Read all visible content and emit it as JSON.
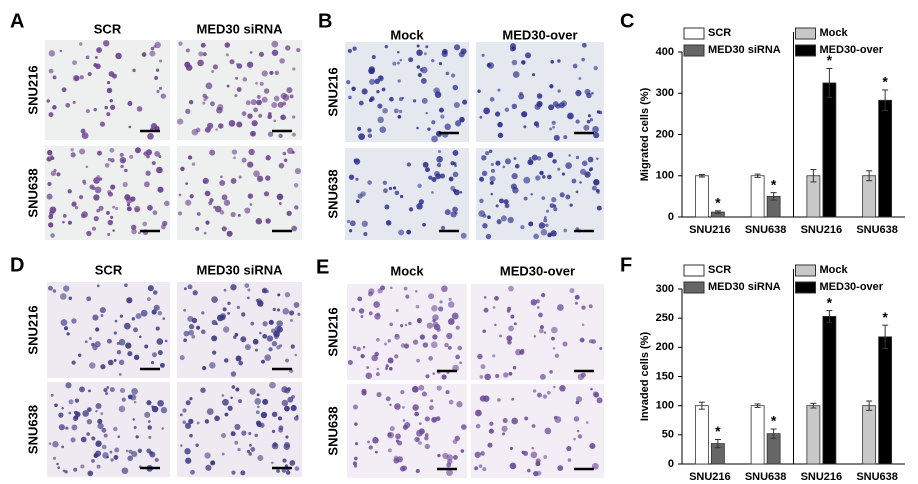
{
  "panels": [
    {
      "label": "A",
      "columns": [
        "SCR",
        "MED30 siRNA"
      ],
      "rows": [
        "SNU216",
        "SNU638"
      ]
    },
    {
      "label": "B",
      "columns": [
        "Mock",
        "MED30-over"
      ],
      "rows": [
        "SNU216",
        "SNU638"
      ]
    },
    {
      "label": "D",
      "columns": [
        "SCR",
        "MED30 siRNA"
      ],
      "rows": [
        "SNU216",
        "SNU638"
      ]
    },
    {
      "label": "E",
      "columns": [
        "Mock",
        "MED30-over"
      ],
      "rows": [
        "SNU216",
        "SNU638"
      ]
    }
  ],
  "chart_data": [
    {
      "type": "bar",
      "panel": "C",
      "y_label": "Migrated cells (%)",
      "categories": [
        "SNU216",
        "SNU638",
        "SNU216",
        "SNU638"
      ],
      "ylim": [
        0,
        400
      ],
      "yticks": [
        0,
        100,
        200,
        300,
        400
      ],
      "series": [
        {
          "name": "SCR",
          "color": "#ffffff",
          "values": [
            100,
            100,
            null,
            null
          ],
          "errors": [
            3,
            4,
            null,
            null
          ]
        },
        {
          "name": "MED30 siRNA",
          "color": "#666666",
          "values": [
            12,
            50,
            null,
            null
          ],
          "errors": [
            3,
            9,
            null,
            null
          ],
          "significance": [
            "*",
            "*",
            null,
            null
          ]
        },
        {
          "name": "Mock",
          "color": "#c8c8c8",
          "values": [
            null,
            null,
            100,
            100
          ],
          "errors": [
            null,
            null,
            15,
            12
          ]
        },
        {
          "name": "MED30-over",
          "color": "#000000",
          "values": [
            null,
            null,
            325,
            283
          ],
          "errors": [
            null,
            null,
            35,
            25
          ],
          "significance": [
            null,
            null,
            "*",
            "*"
          ]
        }
      ]
    },
    {
      "type": "bar",
      "panel": "F",
      "y_label": "Invaded cells (%)",
      "categories": [
        "SNU216",
        "SNU638",
        "SNU216",
        "SNU638"
      ],
      "ylim": [
        0,
        300
      ],
      "yticks": [
        0,
        50,
        100,
        150,
        200,
        250,
        300
      ],
      "series": [
        {
          "name": "SCR",
          "color": "#ffffff",
          "values": [
            100,
            100,
            null,
            null
          ],
          "errors": [
            6,
            3,
            null,
            null
          ]
        },
        {
          "name": "MED30 siRNA",
          "color": "#666666",
          "values": [
            35,
            52,
            null,
            null
          ],
          "errors": [
            7,
            8,
            null,
            null
          ],
          "significance": [
            "*",
            "*",
            null,
            null
          ]
        },
        {
          "name": "Mock",
          "color": "#c8c8c8",
          "values": [
            null,
            null,
            100,
            100
          ],
          "errors": [
            null,
            null,
            4,
            8
          ]
        },
        {
          "name": "MED30-over",
          "color": "#000000",
          "values": [
            null,
            null,
            253,
            218
          ],
          "errors": [
            null,
            null,
            10,
            20
          ],
          "significance": [
            null,
            null,
            "*",
            "*"
          ]
        }
      ]
    }
  ]
}
